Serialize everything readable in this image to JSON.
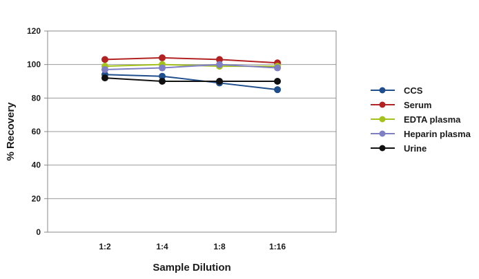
{
  "chart_data": {
    "type": "line",
    "categories": [
      "1:2",
      "1:4",
      "1:8",
      "1:16"
    ],
    "series": [
      {
        "name": "CCS",
        "color": "#1f4e8c",
        "values": [
          94,
          93,
          89,
          85
        ]
      },
      {
        "name": "Serum",
        "color": "#b22222",
        "values": [
          103,
          104,
          103,
          101
        ]
      },
      {
        "name": "EDTA plasma",
        "color": "#a4c21c",
        "values": [
          99,
          100,
          99,
          99
        ]
      },
      {
        "name": "Heparin plasma",
        "color": "#7f7fc4",
        "values": [
          97,
          98,
          100,
          98
        ]
      },
      {
        "name": "Urine",
        "color": "#111111",
        "values": [
          92,
          90,
          90,
          90
        ]
      }
    ],
    "xlabel": "Sample Dilution",
    "ylabel": "% Recovery",
    "ylim": [
      0,
      120
    ],
    "yticks": [
      "0",
      "20",
      "40",
      "60",
      "80",
      "100",
      "120"
    ],
    "grid": true,
    "legend_position": "right"
  }
}
